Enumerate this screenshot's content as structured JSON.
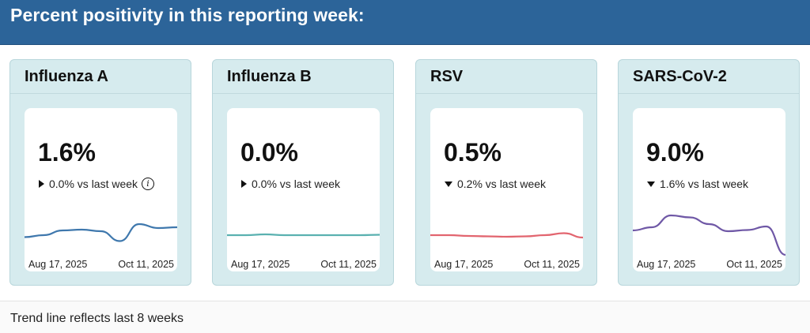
{
  "header": {
    "title": "Percent positivity in this reporting week:"
  },
  "cards": [
    {
      "title": "Influenza A",
      "percent": "1.6%",
      "change": "0.0% vs last week",
      "trend": "flat",
      "show_info": true,
      "line_color": "#3f78ad",
      "series": [
        0.45,
        0.5,
        0.62,
        0.64,
        0.6,
        0.35,
        0.78,
        0.68,
        0.7
      ],
      "start_date": "Aug 17, 2025",
      "end_date": "Oct 11, 2025"
    },
    {
      "title": "Influenza B",
      "percent": "0.0%",
      "change": "0.0% vs last week",
      "trend": "flat",
      "show_info": false,
      "line_color": "#5ab1b0",
      "series": [
        0.5,
        0.5,
        0.52,
        0.5,
        0.5,
        0.5,
        0.5,
        0.5,
        0.51
      ],
      "start_date": "Aug 17, 2025",
      "end_date": "Oct 11, 2025"
    },
    {
      "title": "RSV",
      "percent": "0.5%",
      "change": "0.2% vs last week",
      "trend": "down",
      "show_info": false,
      "line_color": "#e2656f",
      "series": [
        0.5,
        0.5,
        0.48,
        0.47,
        0.46,
        0.47,
        0.5,
        0.55,
        0.44
      ],
      "start_date": "Aug 17, 2025",
      "end_date": "Oct 11, 2025"
    },
    {
      "title": "SARS-CoV-2",
      "percent": "9.0%",
      "change": "1.6% vs last week",
      "trend": "down",
      "show_info": false,
      "line_color": "#6f58a6",
      "series": [
        0.62,
        0.7,
        1.0,
        0.95,
        0.78,
        0.6,
        0.63,
        0.72,
        0.0
      ],
      "start_date": "Aug 17, 2025",
      "end_date": "Oct 11, 2025"
    }
  ],
  "footer": {
    "note": "Trend line reflects last 8 weeks"
  }
}
